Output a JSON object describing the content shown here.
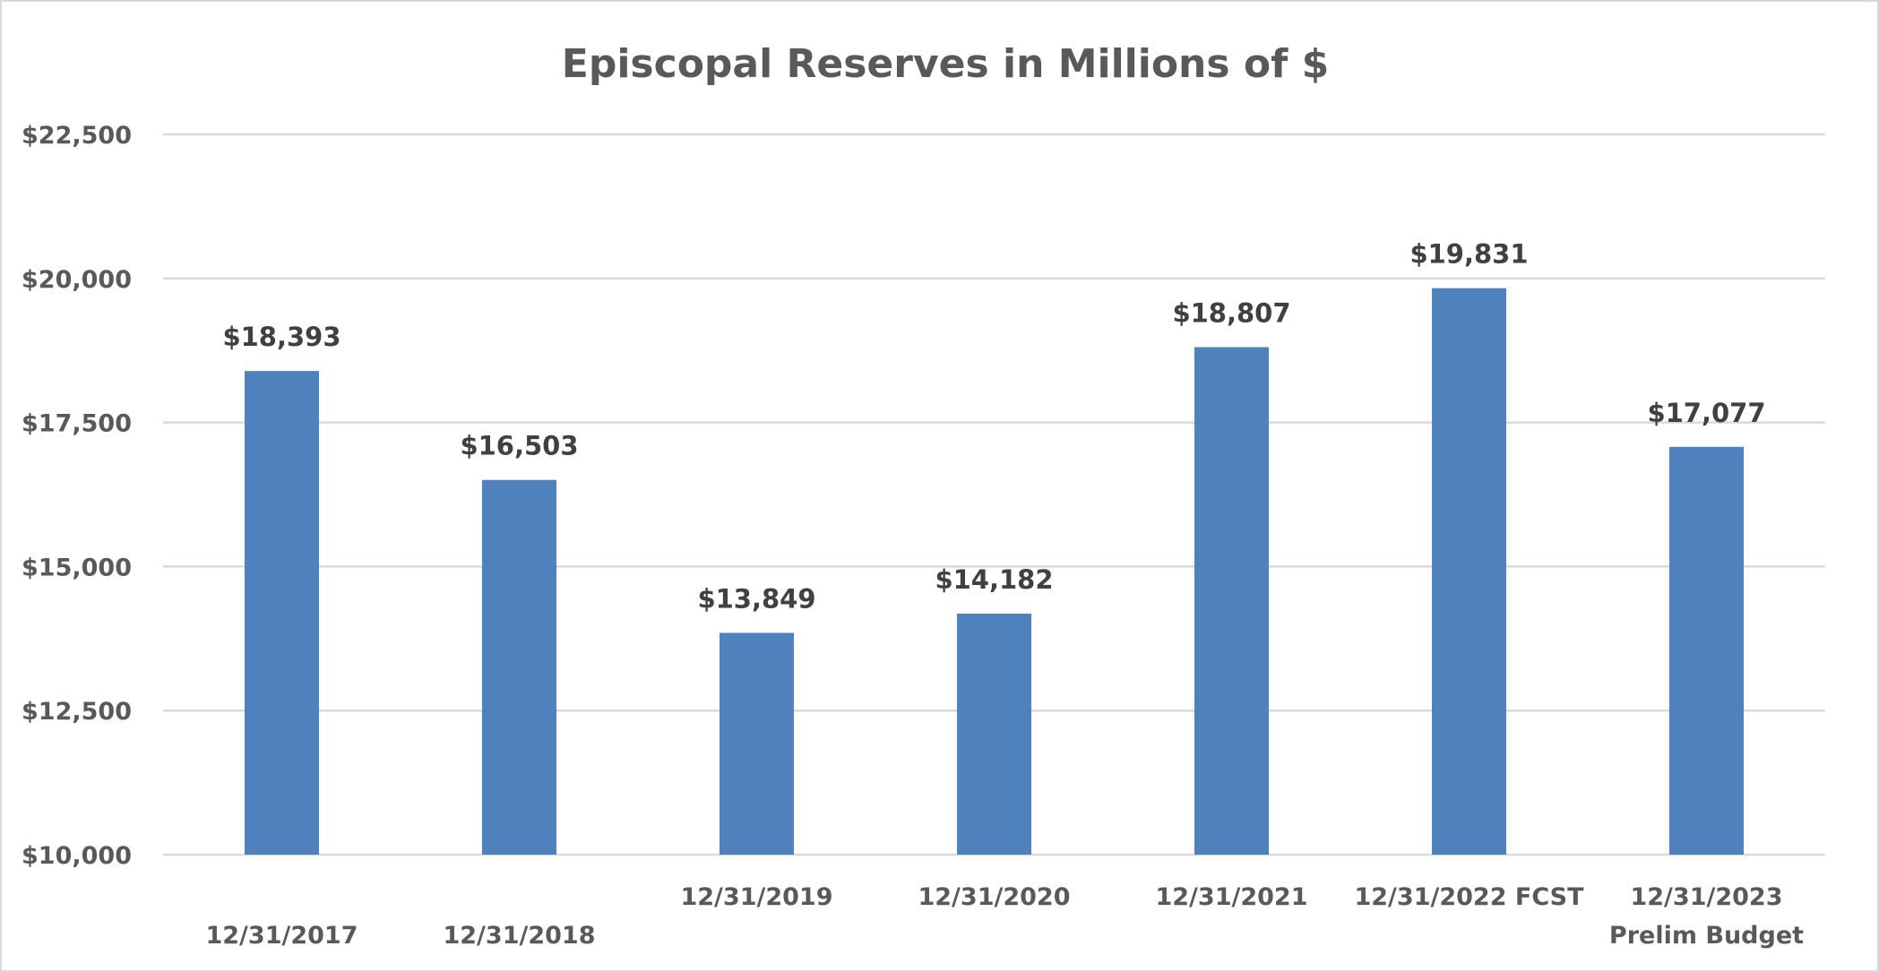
{
  "chart_data": {
    "type": "bar",
    "title": "Episcopal Reserves in Millions of $",
    "xlabel": "",
    "ylabel": "",
    "categories": [
      [
        "12/31/2017"
      ],
      [
        "12/31/2018"
      ],
      [
        "12/31/2019"
      ],
      [
        "12/31/2020"
      ],
      [
        "12/31/2021"
      ],
      [
        "12/31/2022 FCST"
      ],
      [
        "12/31/2023",
        "Prelim Budget"
      ]
    ],
    "values": [
      18393,
      16503,
      13849,
      14182,
      18807,
      19831,
      17077
    ],
    "data_labels": [
      "$18,393",
      "$16,503",
      "$13,849",
      "$14,182",
      "$18,807",
      "$19,831",
      "$17,077"
    ],
    "ylim": [
      10000,
      22500
    ],
    "yticks": [
      10000,
      12500,
      15000,
      17500,
      20000,
      22500
    ],
    "ytick_labels": [
      "$10,000",
      "$12,500",
      "$15,000",
      "$17,500",
      "$20,000",
      "$22,500"
    ],
    "bar_color": "#4f81bd",
    "grid": true,
    "legend": "none"
  }
}
